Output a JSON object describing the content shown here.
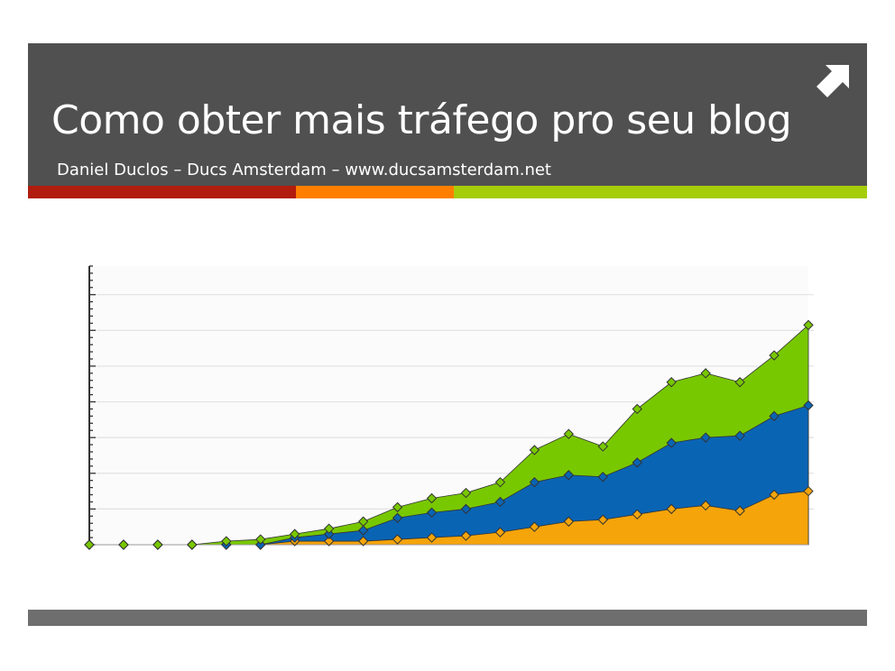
{
  "slide": {
    "title": "Como obter mais tráfego pro seu blog",
    "subtitle": "Daniel Duclos – Ducs Amsterdam – www.ducsamsterdam.net",
    "header_icon": "arrow-up-right-icon"
  },
  "colors": {
    "header_bg": "#505050",
    "stripe_red": "#b11c0e",
    "stripe_orange": "#ff7e00",
    "stripe_green": "#a5cd0a",
    "series_orange": "#f5a40a",
    "series_blue": "#0a64b4",
    "series_green": "#78c800",
    "footer_bar": "#6e6e6e"
  },
  "chart_data": {
    "type": "area",
    "stacked": true,
    "grid": true,
    "y_ticks_labeled": false,
    "x": [
      1,
      2,
      3,
      4,
      5,
      6,
      7,
      8,
      9,
      10,
      11,
      12,
      13,
      14,
      15,
      16,
      17,
      18,
      19,
      20,
      21,
      22
    ],
    "series": [
      {
        "color": "#f5a40a",
        "values": [
          0,
          0,
          0,
          0,
          0,
          0,
          0.1,
          0.1,
          0.1,
          0.15,
          0.2,
          0.25,
          0.35,
          0.5,
          0.65,
          0.7,
          0.85,
          1.0,
          1.1,
          0.95,
          1.4,
          1.5
        ]
      },
      {
        "color": "#0a64b4",
        "values": [
          0,
          0,
          0,
          0,
          0,
          0,
          0.1,
          0.2,
          0.3,
          0.6,
          0.7,
          0.75,
          0.85,
          1.25,
          1.3,
          1.2,
          1.45,
          1.85,
          1.9,
          2.1,
          2.2,
          2.4
        ]
      },
      {
        "color": "#78c800",
        "values": [
          0,
          0,
          0,
          0,
          0.1,
          0.15,
          0.1,
          0.15,
          0.25,
          0.3,
          0.4,
          0.45,
          0.55,
          0.9,
          1.15,
          0.85,
          1.5,
          1.7,
          1.8,
          1.5,
          1.7,
          2.25
        ]
      }
    ],
    "ylim": [
      0,
      7.8
    ]
  }
}
